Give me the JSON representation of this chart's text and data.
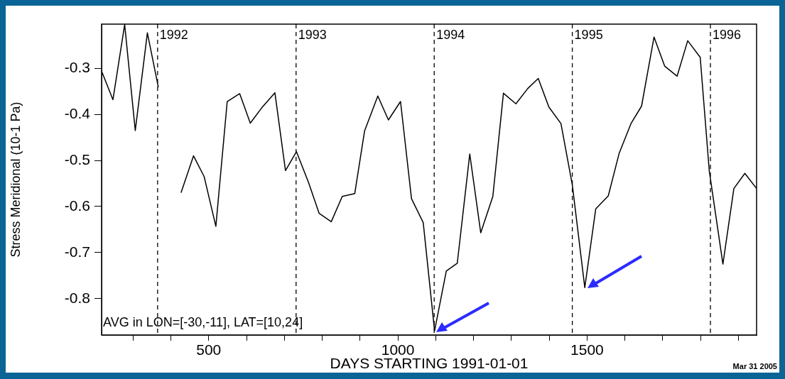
{
  "chart_data": {
    "type": "line",
    "xlabel": "DAYS STARTING 1991-01-01",
    "ylabel": "Stress Meridional (10-1 Pa)",
    "x": [
      218,
      247,
      278,
      306,
      338,
      367,
      397,
      427,
      460,
      488,
      519,
      549,
      582,
      610,
      640,
      675,
      703,
      732,
      764,
      792,
      824,
      853,
      886,
      912,
      947,
      975,
      1007,
      1036,
      1067,
      1097,
      1128,
      1157,
      1190,
      1219,
      1251,
      1279,
      1312,
      1343,
      1371,
      1399,
      1431,
      1461,
      1494,
      1523,
      1556,
      1585,
      1616,
      1644,
      1677,
      1705,
      1738,
      1766,
      1799,
      1823,
      1859,
      1888,
      1917,
      1948
    ],
    "series": [
      {
        "color": "#000000",
        "values": [
          -0.308,
          -0.368,
          -0.205,
          -0.435,
          -0.223,
          -0.341,
          null,
          -0.57,
          -0.49,
          -0.535,
          -0.643,
          -0.372,
          -0.355,
          -0.419,
          -0.386,
          -0.353,
          -0.522,
          -0.481,
          -0.548,
          -0.615,
          -0.633,
          -0.578,
          -0.572,
          -0.436,
          -0.36,
          -0.412,
          -0.372,
          -0.583,
          -0.635,
          -0.87,
          -0.74,
          -0.723,
          -0.486,
          -0.657,
          -0.578,
          -0.354,
          -0.377,
          -0.344,
          -0.322,
          -0.384,
          -0.42,
          -0.553,
          -0.776,
          -0.605,
          -0.577,
          -0.484,
          -0.42,
          -0.382,
          -0.232,
          -0.295,
          -0.317,
          -0.24,
          -0.276,
          -0.523,
          -0.725,
          -0.561,
          -0.528,
          -0.561
        ]
      }
    ],
    "xlim": [
      217,
      1948
    ],
    "ylim": [
      -0.879,
      -0.204
    ],
    "xticks": [
      {
        "value": 300,
        "label": null
      },
      {
        "value": 400,
        "label": null
      },
      500,
      {
        "value": 600,
        "label": null
      },
      {
        "value": 700,
        "label": null
      },
      {
        "value": 800,
        "label": null
      },
      {
        "value": 900,
        "label": null
      },
      1000,
      {
        "value": 1100,
        "label": null
      },
      {
        "value": 1200,
        "label": null
      },
      {
        "value": 1300,
        "label": null
      },
      {
        "value": 1400,
        "label": null
      },
      1500,
      {
        "value": 1600,
        "label": null
      },
      {
        "value": 1700,
        "label": null
      },
      {
        "value": 1800,
        "label": null
      },
      {
        "value": 1900,
        "label": null
      }
    ],
    "yticks": [
      -0.8,
      -0.7,
      -0.6,
      -0.5,
      -0.4,
      -0.3
    ],
    "ref_lines": [
      {
        "axis": "x",
        "value": 365,
        "line_style": "dashed"
      },
      {
        "axis": "x",
        "value": 731,
        "line_style": "dashed"
      },
      {
        "axis": "x",
        "value": 1096,
        "line_style": "dashed"
      },
      {
        "axis": "x",
        "value": 1461,
        "line_style": "dashed"
      },
      {
        "axis": "x",
        "value": 1826,
        "line_style": "dashed"
      }
    ],
    "annotations": [
      "AVG in LON=[-30,-11], LAT=[10,24]",
      "Mar 31 2005",
      {
        "text": "1992",
        "x": 365,
        "y": -0.228
      },
      {
        "text": "1993",
        "x": 731,
        "y": -0.228
      },
      {
        "text": "1994",
        "x": 1096,
        "y": -0.228
      },
      {
        "text": "1995",
        "x": 1461,
        "y": -0.228
      },
      {
        "text": "1996",
        "x": 1826,
        "y": -0.228
      }
    ],
    "grid": false,
    "legend": false,
    "marker": "none",
    "line_style": "solid"
  }
}
